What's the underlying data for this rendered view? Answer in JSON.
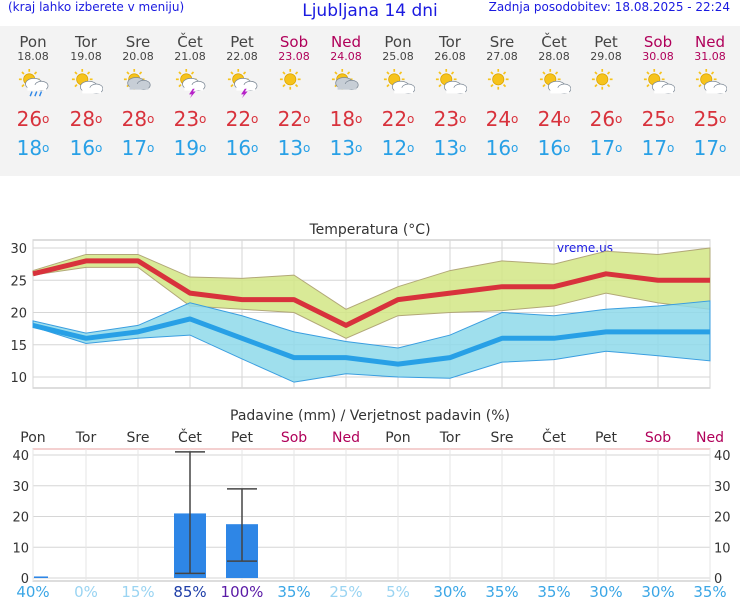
{
  "header": {
    "note": "(kraj lahko izberete v meniju)",
    "title": "Ljubljana 14 dni",
    "updated": "Zadnja posodobitev: 18.08.2025 - 22:24"
  },
  "days": [
    {
      "name": "Pon",
      "date": "18.08",
      "weekend": false,
      "icon": "sun-cloud-rain-icon",
      "tmax": "26",
      "tmin": "18"
    },
    {
      "name": "Tor",
      "date": "19.08",
      "weekend": false,
      "icon": "sun-cloud-icon",
      "tmax": "28",
      "tmin": "16"
    },
    {
      "name": "Sre",
      "date": "20.08",
      "weekend": false,
      "icon": "cloud-sun-icon",
      "tmax": "28",
      "tmin": "17"
    },
    {
      "name": "Čet",
      "date": "21.08",
      "weekend": false,
      "icon": "sun-cloud-thunder-icon",
      "tmax": "23",
      "tmin": "19"
    },
    {
      "name": "Pet",
      "date": "22.08",
      "weekend": false,
      "icon": "sun-cloud-thunder-icon",
      "tmax": "22",
      "tmin": "16"
    },
    {
      "name": "Sob",
      "date": "23.08",
      "weekend": true,
      "icon": "sun-icon",
      "tmax": "22",
      "tmin": "13"
    },
    {
      "name": "Ned",
      "date": "24.08",
      "weekend": true,
      "icon": "cloud-sun-icon",
      "tmax": "18",
      "tmin": "13"
    },
    {
      "name": "Pon",
      "date": "25.08",
      "weekend": false,
      "icon": "sun-cloud-icon",
      "tmax": "22",
      "tmin": "12"
    },
    {
      "name": "Tor",
      "date": "26.08",
      "weekend": false,
      "icon": "sun-cloud-icon",
      "tmax": "23",
      "tmin": "13"
    },
    {
      "name": "Sre",
      "date": "27.08",
      "weekend": false,
      "icon": "sun-icon",
      "tmax": "24",
      "tmin": "16"
    },
    {
      "name": "Čet",
      "date": "28.08",
      "weekend": false,
      "icon": "sun-cloud-icon",
      "tmax": "24",
      "tmin": "16"
    },
    {
      "name": "Pet",
      "date": "29.08",
      "weekend": false,
      "icon": "sun-icon",
      "tmax": "26",
      "tmin": "17"
    },
    {
      "name": "Sob",
      "date": "30.08",
      "weekend": true,
      "icon": "sun-cloud-icon",
      "tmax": "25",
      "tmin": "17"
    },
    {
      "name": "Ned",
      "date": "31.08",
      "weekend": true,
      "icon": "sun-cloud-icon",
      "tmax": "25",
      "tmin": "17"
    }
  ],
  "deg_symbol": "o",
  "chart_data": [
    {
      "type": "line",
      "title": "Temperatura (°C)",
      "watermark": "vreme.us",
      "ylim": [
        8,
        31
      ],
      "yticks": [
        10,
        15,
        20,
        25,
        30
      ],
      "series": [
        {
          "name": "max",
          "values": [
            26,
            28,
            28,
            23,
            22,
            22,
            18,
            22,
            23,
            24,
            24,
            26,
            25,
            25
          ]
        },
        {
          "name": "max_band_low",
          "values": [
            25.8,
            27,
            27,
            21,
            20.5,
            20,
            16,
            19.5,
            20,
            20.3,
            21,
            23,
            21.5,
            20.5
          ]
        },
        {
          "name": "max_band_high",
          "values": [
            26.5,
            29,
            29,
            25.5,
            25.3,
            25.8,
            20.5,
            24,
            26.5,
            28,
            27.5,
            29.5,
            29,
            30
          ]
        },
        {
          "name": "min",
          "values": [
            18,
            16,
            17,
            19,
            16,
            13,
            13,
            12,
            13,
            16,
            16,
            17,
            17,
            17
          ]
        },
        {
          "name": "min_band_low",
          "values": [
            17.8,
            15.2,
            16,
            16.5,
            12.8,
            9.2,
            10.5,
            10,
            9.8,
            12.3,
            12.7,
            14,
            13.3,
            12.5
          ]
        },
        {
          "name": "min_band_high",
          "values": [
            18.7,
            16.8,
            18,
            21.5,
            19.5,
            17,
            15.5,
            14.5,
            16.5,
            20,
            19.5,
            20.5,
            21,
            21.8
          ]
        }
      ]
    },
    {
      "type": "bar",
      "title": "Padavine (mm) / Verjetnost padavin (%)",
      "ylim": [
        0,
        42
      ],
      "yticks": [
        0,
        10,
        20,
        30,
        40
      ],
      "categories": [
        "Pon",
        "Tor",
        "Sre",
        "Čet",
        "Pet",
        "Sob",
        "Ned",
        "Pon",
        "Tor",
        "Sre",
        "Čet",
        "Pet",
        "Sob",
        "Ned"
      ],
      "weekend": [
        false,
        false,
        false,
        false,
        false,
        true,
        true,
        false,
        false,
        false,
        false,
        false,
        true,
        true
      ],
      "values": [
        0.5,
        0,
        0,
        21,
        17.5,
        0,
        0,
        0,
        0,
        0,
        0,
        0,
        0,
        0
      ],
      "err_low": [
        0,
        0,
        0,
        1.5,
        5.5,
        0,
        0,
        0,
        0,
        0,
        0,
        0,
        0,
        0
      ],
      "err_high": [
        0.5,
        0,
        0,
        41,
        29,
        0,
        0,
        0,
        0,
        0,
        0,
        0,
        0,
        0
      ],
      "probability": [
        "40%",
        "0%",
        "15%",
        "85%",
        "100%",
        "35%",
        "25%",
        "5%",
        "30%",
        "35%",
        "35%",
        "30%",
        "30%",
        "35%"
      ],
      "probability_values": [
        40,
        0,
        15,
        85,
        100,
        35,
        25,
        5,
        30,
        35,
        35,
        30,
        30,
        35
      ]
    }
  ],
  "colors": {
    "title": "#1a1ae0",
    "tmax": "#d8323c",
    "tmin": "#28a0e6",
    "weekend": "#b0005a",
    "max_band": "#d2e685",
    "min_band": "#8ed9ea",
    "bar": "#2e86e6",
    "error": "#444444"
  }
}
